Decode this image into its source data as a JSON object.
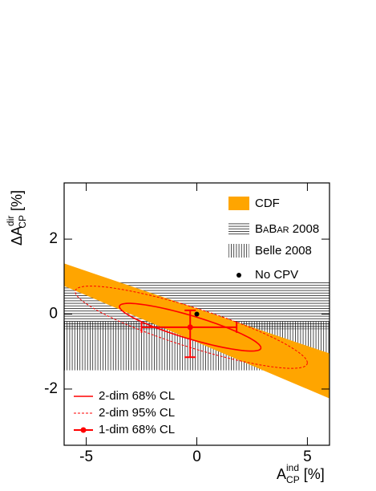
{
  "chart_data": {
    "type": "contour",
    "xlabel": {
      "main": "A",
      "sup": "ind",
      "sub": "CP",
      "unit": "[%]"
    },
    "ylabel": {
      "main": "ΔA",
      "sup": "dir",
      "sub": "CP",
      "unit": "[%]"
    },
    "xlim": [
      -6,
      6
    ],
    "ylim": [
      -3.5,
      3.5
    ],
    "xticks": [
      -5,
      0,
      5
    ],
    "yticks": [
      -2,
      0,
      2
    ],
    "cdf": {
      "name": "CDF",
      "color": "#ffa500",
      "x": [
        -6,
        6
      ],
      "upper": [
        1.35,
        -1.05
      ],
      "lower": [
        0.75,
        -2.25
      ]
    },
    "babar": {
      "name": "BaBar 2008",
      "y": [
        0.85,
        -0.4
      ]
    },
    "belle": {
      "name": "Belle 2008",
      "y": [
        -0.2,
        -1.5
      ]
    },
    "no_cpv": {
      "name": "No CPV",
      "x": 0,
      "y": 0
    },
    "ellipse68": {
      "name": "2-dim 68% CL",
      "color": "#ff0000",
      "center": [
        -0.3,
        -0.35
      ],
      "major": [
        3.2,
        -0.55
      ],
      "minor": [
        0,
        0.32
      ]
    },
    "ellipse95": {
      "name": "2-dim 95% CL",
      "color": "#ff0000",
      "center": [
        -0.25,
        -0.35
      ],
      "major": [
        5.25,
        -0.95
      ],
      "minor": [
        0,
        0.55
      ]
    },
    "onedim": {
      "name": "1-dim 68% CL",
      "color": "#ff0000",
      "x": -0.3,
      "y": -0.35,
      "xerr": [
        2.2,
        2.1
      ],
      "yerr": [
        0.45,
        0.8
      ]
    }
  }
}
